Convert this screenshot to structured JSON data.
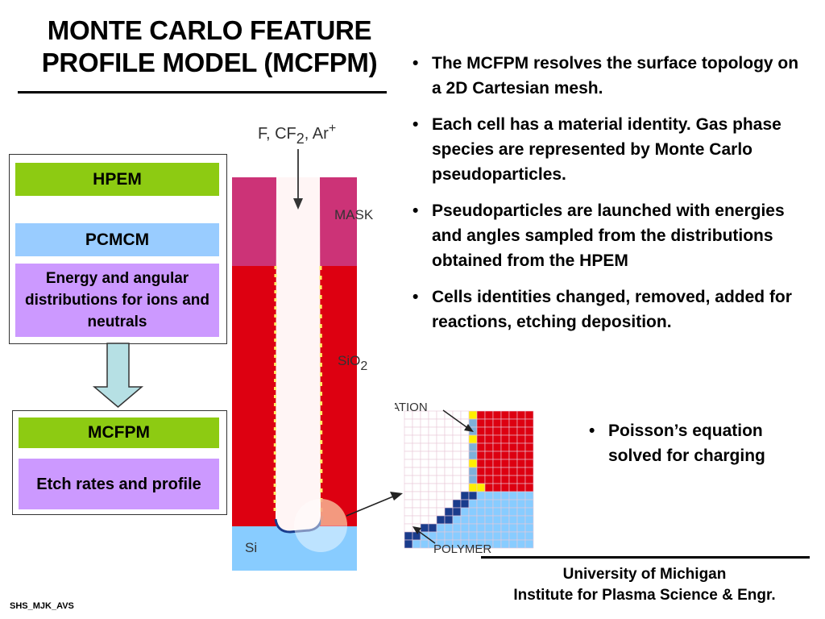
{
  "title": {
    "line1": "MONTE CARLO FEATURE",
    "line2": "PROFILE MODEL (MCFPM)"
  },
  "bullets": [
    "The MCFPM resolves the surface topology on a 2D Cartesian mesh.",
    "Each cell has a material identity.  Gas phase species are represented by Monte Carlo pseudoparticles.",
    "Pseudoparticles are launched with energies and angles sampled from the distributions obtained from the HPEM",
    "Cells identities changed, removed, added for reactions, etching deposition."
  ],
  "poisson_bullet": "Poisson’s equation solved for charging",
  "flow": {
    "top_box": {
      "hpem": "HPEM",
      "pcmcm": "PCMCM",
      "distributions": "Energy and angular distributions for ions and neutrals"
    },
    "bottom_box": {
      "mcfpm": "MCFPM",
      "etch": "Etch rates and profile"
    }
  },
  "feature": {
    "species": "F, CF",
    "species_sub": "2",
    "species_tail": ", Ar",
    "species_sup": "+",
    "mask": "MASK",
    "sio": "SiO",
    "sio_sub": "2",
    "si": "Si",
    "passivation": "PASSIVATION",
    "polymer": "POLYMER"
  },
  "colors": {
    "mask": "#cc3377",
    "oxide": "#dd0011",
    "silicon": "#88ccff",
    "green": "#8dcb12",
    "blue": "#99ccff",
    "purple": "#cc99ff",
    "arrow_fill": "#b6e0e4",
    "polymer": "#1a3c8c",
    "passivation": "#ffee00"
  },
  "footer": {
    "affil1": "University of Michigan",
    "affil2": "Institute for Plasma Science & Engr.",
    "tag": "SHS_MJK_AVS"
  }
}
